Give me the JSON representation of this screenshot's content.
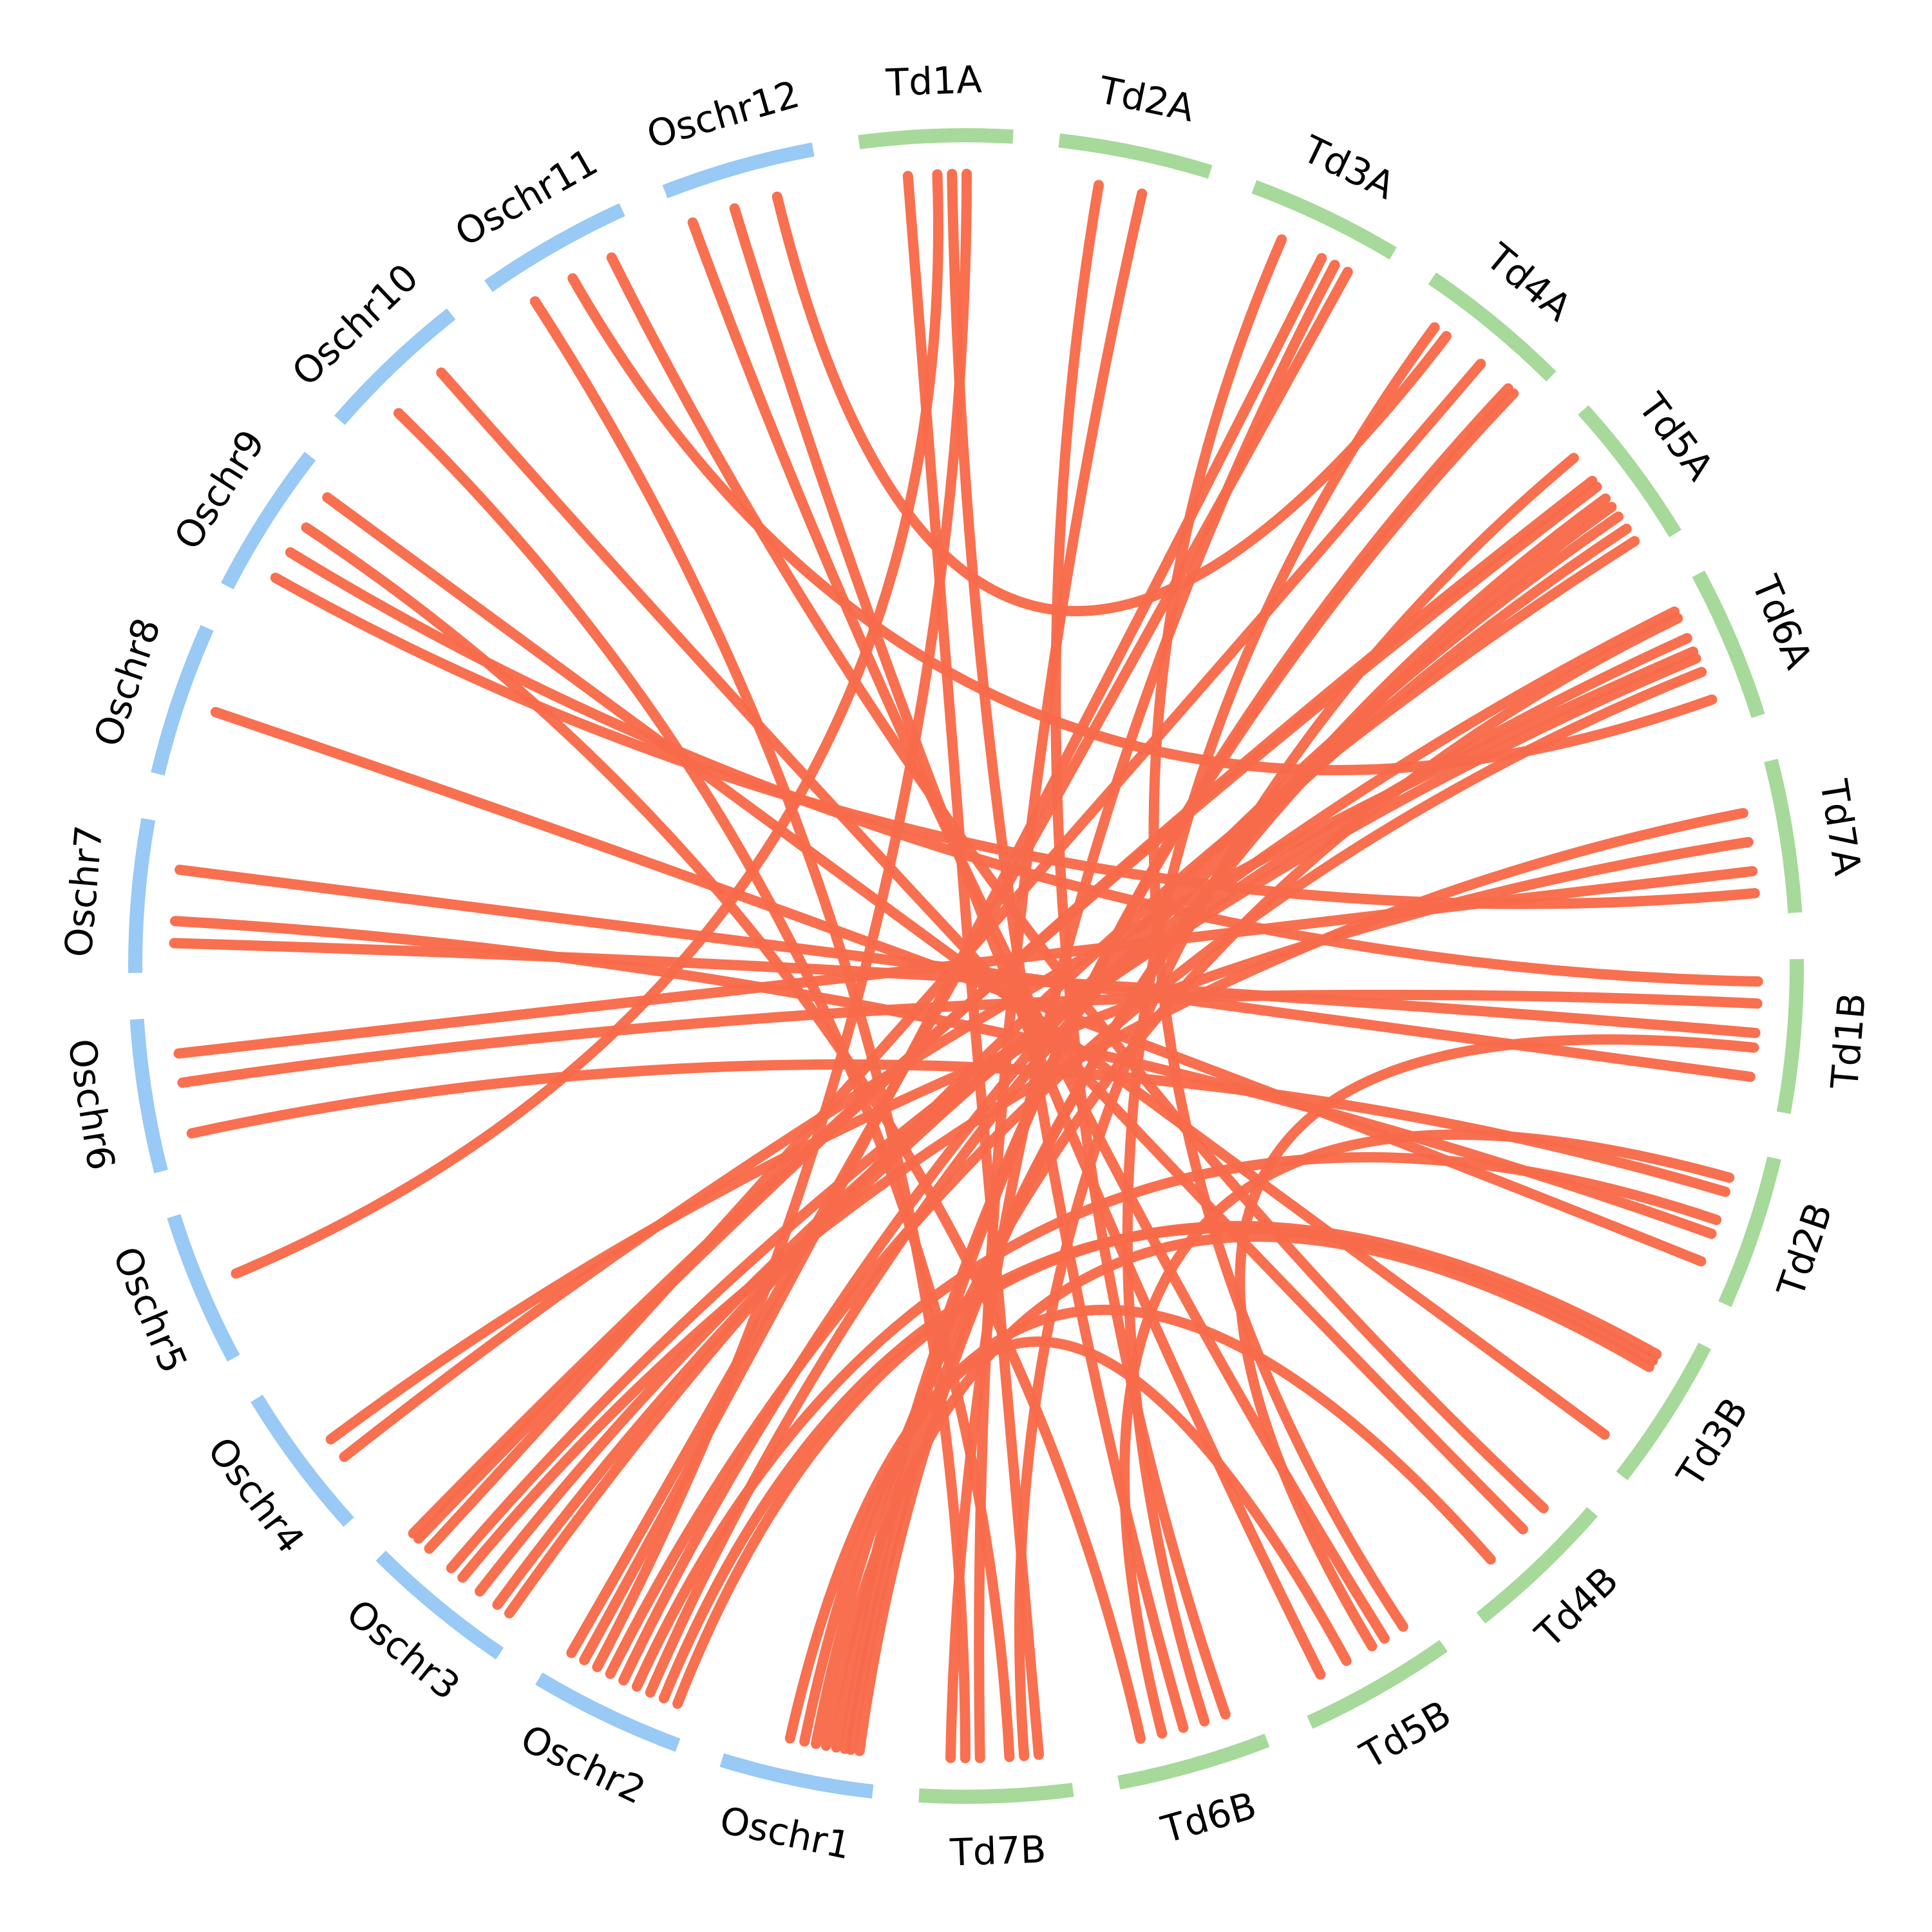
{
  "colors": {
    "rice_segment": "#99c9f5",
    "wheat_segment": "#a6d99a",
    "link": "#f86b4a",
    "label": "#000000"
  },
  "segments": [
    {
      "id": "Oschr1",
      "label": "Oschr1",
      "group": "rice"
    },
    {
      "id": "Oschr2",
      "label": "Oschr2",
      "group": "rice"
    },
    {
      "id": "Oschr3",
      "label": "Oschr3",
      "group": "rice"
    },
    {
      "id": "Oschr4",
      "label": "Oschr4",
      "group": "rice"
    },
    {
      "id": "Oschr5",
      "label": "Oschr5",
      "group": "rice"
    },
    {
      "id": "Oschr6",
      "label": "Oschr6",
      "group": "rice"
    },
    {
      "id": "Oschr7",
      "label": "Oschr7",
      "group": "rice"
    },
    {
      "id": "Oschr8",
      "label": "Oschr8",
      "group": "rice"
    },
    {
      "id": "Oschr9",
      "label": "Oschr9",
      "group": "rice"
    },
    {
      "id": "Oschr10",
      "label": "Oschr10",
      "group": "rice"
    },
    {
      "id": "Oschr11",
      "label": "Oschr11",
      "group": "rice"
    },
    {
      "id": "Oschr12",
      "label": "Oschr12",
      "group": "rice"
    },
    {
      "id": "Td1A",
      "label": "Td1A",
      "group": "wheat"
    },
    {
      "id": "Td2A",
      "label": "Td2A",
      "group": "wheat"
    },
    {
      "id": "Td3A",
      "label": "Td3A",
      "group": "wheat"
    },
    {
      "id": "Td4A",
      "label": "Td4A",
      "group": "wheat"
    },
    {
      "id": "Td5A",
      "label": "Td5A",
      "group": "wheat"
    },
    {
      "id": "Td6A",
      "label": "Td6A",
      "group": "wheat"
    },
    {
      "id": "Td7A",
      "label": "Td7A",
      "group": "wheat"
    },
    {
      "id": "Td1B",
      "label": "Td1B",
      "group": "wheat"
    },
    {
      "id": "Td2B",
      "label": "Td2B",
      "group": "wheat"
    },
    {
      "id": "Td3B",
      "label": "Td3B",
      "group": "wheat"
    },
    {
      "id": "Td4B",
      "label": "Td4B",
      "group": "wheat"
    },
    {
      "id": "Td5B",
      "label": "Td5B",
      "group": "wheat"
    },
    {
      "id": "Td6B",
      "label": "Td6B",
      "group": "wheat"
    },
    {
      "id": "Td7B",
      "label": "Td7B",
      "group": "wheat"
    }
  ],
  "links": [
    [
      "Oschr1",
      0.12,
      "Td5A",
      0.55
    ],
    [
      "Oschr1",
      0.18,
      "Td5A",
      0.62
    ],
    [
      "Oschr1",
      0.22,
      "Td4A",
      0.85
    ],
    [
      "Oschr1",
      0.28,
      "Td4A",
      0.9
    ],
    [
      "Oschr1",
      0.35,
      "Td3B",
      0.3
    ],
    [
      "Oschr1",
      0.42,
      "Td6A",
      0.2
    ],
    [
      "Oschr1",
      0.5,
      "Td5B",
      0.6
    ],
    [
      "Oschr1",
      0.6,
      "Td4B",
      0.7
    ],
    [
      "Oschr2",
      0.1,
      "Td3B",
      0.2
    ],
    [
      "Oschr2",
      0.2,
      "Td3B",
      0.25
    ],
    [
      "Oschr2",
      0.3,
      "Td5A",
      0.8
    ],
    [
      "Oschr2",
      0.4,
      "Td2B",
      0.5
    ],
    [
      "Oschr2",
      0.5,
      "Td5A",
      0.7
    ],
    [
      "Oschr2",
      0.6,
      "Td6A",
      0.6
    ],
    [
      "Oschr2",
      0.7,
      "Td1A",
      0.7
    ],
    [
      "Oschr2",
      0.8,
      "Td3A",
      0.6
    ],
    [
      "Oschr2",
      0.9,
      "Td3A",
      0.8
    ],
    [
      "Oschr3",
      0.1,
      "Td5A",
      0.9
    ],
    [
      "Oschr3",
      0.2,
      "Td6A",
      0.15
    ],
    [
      "Oschr3",
      0.35,
      "Td6A",
      0.35
    ],
    [
      "Oschr3",
      0.5,
      "Td7A",
      0.3
    ],
    [
      "Oschr3",
      0.6,
      "Td6A",
      0.5
    ],
    [
      "Oschr3",
      0.8,
      "Td4A",
      0.6
    ],
    [
      "Oschr3",
      0.9,
      "Td5A",
      0.4
    ],
    [
      "Oschr3",
      0.95,
      "Td5A",
      0.45
    ],
    [
      "Oschr4",
      0.35,
      "Td6A",
      0.45
    ],
    [
      "Oschr4",
      0.5,
      "Td7A",
      0.5
    ],
    [
      "Oschr5",
      0.5,
      "Td1A",
      0.5
    ],
    [
      "Oschr6",
      0.2,
      "Td2B",
      0.3
    ],
    [
      "Oschr6",
      0.55,
      "Td1B",
      0.3
    ],
    [
      "Oschr6",
      0.75,
      "Td7A",
      0.7
    ],
    [
      "Oschr7",
      0.2,
      "Td1B",
      0.5
    ],
    [
      "Oschr7",
      0.35,
      "Td2B",
      0.6
    ],
    [
      "Oschr7",
      0.7,
      "Td1B",
      0.8
    ],
    [
      "Oschr8",
      0.5,
      "Td2B",
      0.8
    ],
    [
      "Oschr9",
      0.2,
      "Td7A",
      0.85
    ],
    [
      "Oschr9",
      0.4,
      "Td1B",
      0.15
    ],
    [
      "Oschr9",
      0.6,
      "Td6B",
      0.8
    ],
    [
      "Oschr9",
      0.85,
      "Td3B",
      0.85
    ],
    [
      "Oschr10",
      0.3,
      "Td7B",
      0.4
    ],
    [
      "Oschr10",
      0.7,
      "Td4B",
      0.4
    ],
    [
      "Oschr11",
      0.2,
      "Td7B",
      0.7
    ],
    [
      "Oschr11",
      0.5,
      "Td6A",
      0.8
    ],
    [
      "Oschr11",
      0.8,
      "Td4B",
      0.2
    ],
    [
      "Oschr12",
      0.1,
      "Td5B",
      0.3
    ],
    [
      "Oschr12",
      0.4,
      "Td5B",
      0.8
    ],
    [
      "Oschr12",
      0.7,
      "Td4A",
      0.3
    ],
    [
      "Td1A",
      0.3,
      "Td7B",
      0.2
    ],
    [
      "Td1A",
      0.6,
      "Td6B",
      0.5
    ],
    [
      "Td2A",
      0.3,
      "Td6B",
      0.2
    ],
    [
      "Td2A",
      0.6,
      "Td7B",
      0.6
    ],
    [
      "Td3A",
      0.3,
      "Td5B",
      0.15
    ],
    [
      "Td3A",
      0.7,
      "Td7B",
      0.8
    ],
    [
      "Td4A",
      0.2,
      "Td6B",
      0.35
    ],
    [
      "Td5A",
      0.2,
      "Td7B",
      0.3
    ],
    [
      "Td1B",
      0.6,
      "Td5B",
      0.4
    ],
    [
      "Td2B",
      0.2,
      "Td6B",
      0.65
    ]
  ]
}
